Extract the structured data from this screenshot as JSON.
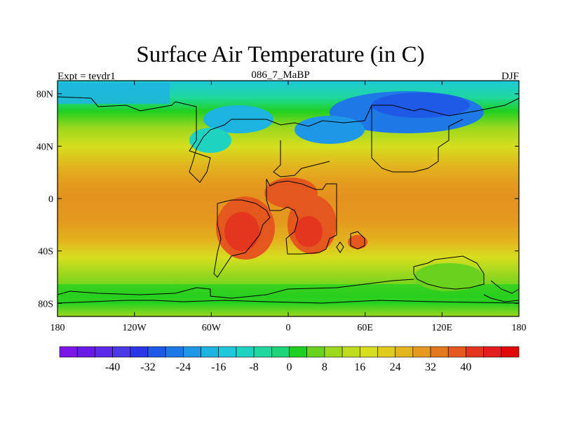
{
  "title": "Surface Air Temperature (in C)",
  "subtitle_left": "Expt = teydr1",
  "subtitle_center": "086_7_MaBP",
  "subtitle_right": "DJF",
  "lat_ticks": [
    {
      "value": 80,
      "label": "80N"
    },
    {
      "value": 40,
      "label": "40N"
    },
    {
      "value": 0,
      "label": "0"
    },
    {
      "value": -40,
      "label": "40S"
    },
    {
      "value": -80,
      "label": "80S"
    }
  ],
  "lon_ticks": [
    {
      "value": -180,
      "label": "180"
    },
    {
      "value": -120,
      "label": "120W"
    },
    {
      "value": -60,
      "label": "60W"
    },
    {
      "value": 0,
      "label": "0"
    },
    {
      "value": 60,
      "label": "60E"
    },
    {
      "value": 120,
      "label": "120E"
    },
    {
      "value": 180,
      "label": "180"
    }
  ],
  "colorbar": {
    "colors": [
      "#7a16e6",
      "#6a1ae6",
      "#5a2ae6",
      "#4b38e6",
      "#2a36e6",
      "#1e5ae6",
      "#1e78e6",
      "#1e98e6",
      "#1eb4e0",
      "#1ec8d8",
      "#1ed4c0",
      "#1ed8a0",
      "#1ed478",
      "#20d020",
      "#6ad21e",
      "#9cd81e",
      "#c0dc1e",
      "#d6de1e",
      "#e0cc1e",
      "#e2b41e",
      "#e49a1e",
      "#e4781e",
      "#e4581e",
      "#e4361e",
      "#e21e1e",
      "#e00a0a"
    ],
    "labels": [
      "-40",
      "-32",
      "-24",
      "-16",
      "-8",
      "0",
      "8",
      "16",
      "24",
      "32",
      "40"
    ],
    "label_boundary_index": [
      3,
      5,
      7,
      9,
      11,
      13,
      15,
      17,
      19,
      21,
      23
    ]
  }
}
